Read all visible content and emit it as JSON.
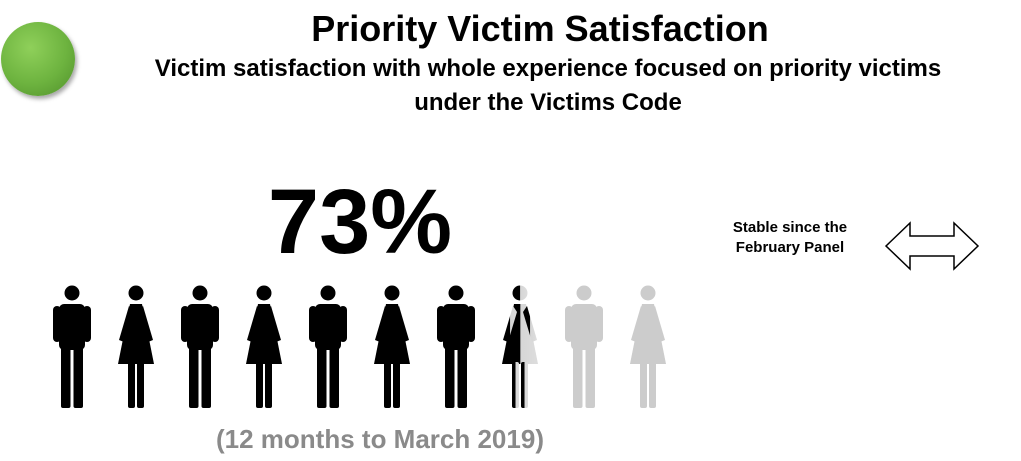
{
  "title": "Priority Victim Satisfaction",
  "subtitle": "Victim satisfaction with whole experience focused on priority victims under the Victims Code",
  "status_color": "#6db33f",
  "headline": {
    "value": "73%",
    "fraction": 0.73
  },
  "icons": {
    "sequence": [
      "male",
      "female",
      "male",
      "female",
      "male",
      "female",
      "male",
      "female",
      "male",
      "female"
    ],
    "filled_color": "#000000",
    "empty_color": "#cccccc"
  },
  "period": "(12 months to March 2019)",
  "trend": {
    "label": "Stable since the February Panel",
    "icon": "double-headed-arrow-icon"
  }
}
